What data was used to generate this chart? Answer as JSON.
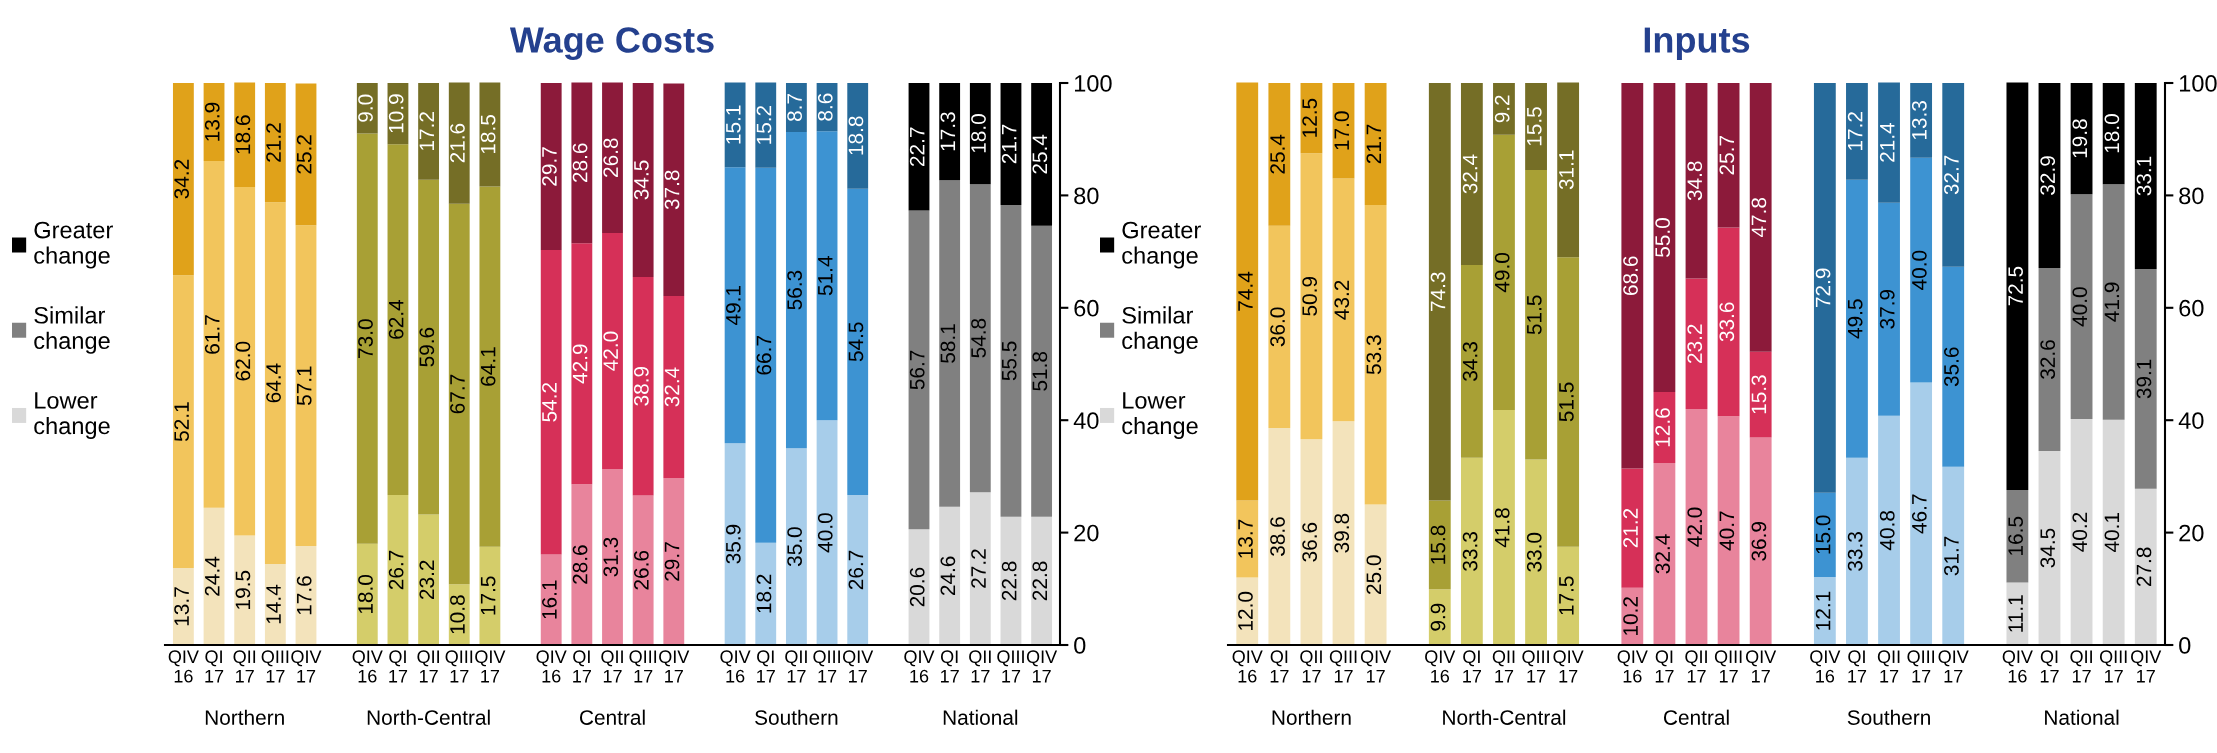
{
  "chart_data": [
    {
      "type": "bar",
      "title": "Wage Costs",
      "stacked": true,
      "legend": "left",
      "grid": false,
      "categories": [
        "QIV\n16",
        "QI\n17",
        "QII\n17",
        "QIII\n17",
        "QIV\n17",
        null,
        "QIV\n16",
        "QI\n17",
        "QII\n17",
        "QIII\n17",
        "QIV\n17",
        null,
        "QIV\n16",
        "QI\n17",
        "QII\n17",
        "QIII\n17",
        "QIV\n17",
        null,
        "QIV\n16",
        "QI\n17",
        "QII\n17",
        "QIII\n17",
        "QIV\n17",
        null,
        "QIV\n16",
        "QI\n17",
        "QII\n17",
        "QIII\n17",
        "QIV\n17"
      ],
      "annotations": [
        "Northern",
        "North-Central",
        "Central",
        "Southern",
        "National"
      ],
      "ylim": [
        0,
        100
      ],
      "yticks": [
        0,
        20,
        40,
        60,
        80,
        100
      ],
      "series": [
        {
          "name": "Lower change",
          "color": "#d9d9d9",
          "values": [
            13.7,
            24.4,
            19.5,
            14.4,
            17.6,
            null,
            18.0,
            26.7,
            23.2,
            10.8,
            17.5,
            null,
            16.1,
            28.6,
            31.3,
            26.6,
            29.7,
            null,
            35.9,
            18.2,
            35.0,
            40.0,
            26.7,
            null,
            20.6,
            24.6,
            27.2,
            22.8,
            22.8
          ],
          "value_labels": [
            "13.7",
            "24.4",
            "19.5",
            "14.4",
            "17.6",
            null,
            "18.0",
            "26.7",
            "23.2",
            "10.8",
            "17.5",
            null,
            "16.1",
            "28.6",
            "31.3",
            "26.6",
            "29.7",
            null,
            "35.9",
            "18.2",
            "35.0",
            "40.0",
            "26.7",
            null,
            "20.6",
            "24.6",
            "27.2",
            "22.8",
            "22.8"
          ],
          "colors": [
            "#f3e3bb",
            "#f3e3bb",
            "#f3e3bb",
            "#f3e3bb",
            "#f3e3bb",
            null,
            "#d4cd6a",
            "#d4cd6a",
            "#d4cd6a",
            "#d4cd6a",
            "#d4cd6a",
            null,
            "#e8849c",
            "#e8849c",
            "#e8849c",
            "#e8849c",
            "#e8849c",
            null,
            "#a7cdea",
            "#a7cdea",
            "#a7cdea",
            "#a7cdea",
            "#a7cdea",
            null,
            "#d9d9d9",
            "#d9d9d9",
            "#d9d9d9",
            "#d9d9d9",
            "#d9d9d9"
          ]
        },
        {
          "name": "Similar change",
          "color": "#808080",
          "values": [
            52.1,
            61.7,
            62.0,
            64.4,
            57.1,
            null,
            73.0,
            62.4,
            59.6,
            67.7,
            64.1,
            null,
            54.2,
            42.9,
            42.0,
            38.9,
            32.4,
            null,
            49.1,
            66.7,
            56.3,
            51.4,
            54.5,
            null,
            56.7,
            58.1,
            54.8,
            55.5,
            51.8
          ],
          "value_labels": [
            "52.1",
            "61.7",
            "62.0",
            "64.4",
            "57.1",
            null,
            "73.0",
            "62.4",
            "59.6",
            "67.7",
            "64.1",
            null,
            "54.2",
            "42.9",
            "42.0",
            "38.9",
            "32.4",
            null,
            "49.1",
            "66.7",
            "56.3",
            "51.4",
            "54.5",
            null,
            "56.7",
            "58.1",
            "54.8",
            "55.5",
            "51.8"
          ],
          "colors": [
            "#f2c55c",
            "#f2c55c",
            "#f2c55c",
            "#f2c55c",
            "#f2c55c",
            null,
            "#a8a035",
            "#a8a035",
            "#a8a035",
            "#a8a035",
            "#a8a035",
            null,
            "#d63058",
            "#d63058",
            "#d63058",
            "#d63058",
            "#d63058",
            null,
            "#3d93d2",
            "#3d93d2",
            "#3d93d2",
            "#3d93d2",
            "#3d93d2",
            null,
            "#808080",
            "#808080",
            "#808080",
            "#808080",
            "#808080"
          ]
        },
        {
          "name": "Greater change",
          "color": "#000000",
          "values": [
            34.2,
            13.9,
            18.6,
            21.2,
            25.2,
            null,
            9.0,
            10.9,
            17.2,
            21.6,
            18.5,
            null,
            29.7,
            28.6,
            26.8,
            34.5,
            37.8,
            null,
            15.1,
            15.2,
            8.7,
            8.6,
            18.8,
            null,
            22.7,
            17.3,
            18.0,
            21.7,
            25.4
          ],
          "value_labels": [
            "34.2",
            "13.9",
            "18.6",
            "21.2",
            "25.2",
            null,
            "9.0",
            "10.9",
            "17.2",
            "21.6",
            "18.5",
            null,
            "29.7",
            "28.6",
            "26.8",
            "34.5",
            "37.8",
            null,
            "15.1",
            "15.2",
            "8.7",
            "8.6",
            "18.8",
            null,
            "22.7",
            "17.3",
            "18.0",
            "21.7",
            "25.4"
          ],
          "colors": [
            "#e0a21a",
            "#e0a21a",
            "#e0a21a",
            "#e0a21a",
            "#e0a21a",
            null,
            "#756e26",
            "#756e26",
            "#756e26",
            "#756e26",
            "#756e26",
            null,
            "#8c1a3a",
            "#8c1a3a",
            "#8c1a3a",
            "#8c1a3a",
            "#8c1a3a",
            null,
            "#266a9a",
            "#266a9a",
            "#266a9a",
            "#266a9a",
            "#266a9a",
            null,
            "#000000",
            "#000000",
            "#000000",
            "#000000",
            "#000000"
          ]
        }
      ]
    },
    {
      "type": "bar",
      "title": "Inputs",
      "stacked": true,
      "legend": "left",
      "grid": false,
      "categories": [
        "QIV\n16",
        "QI\n17",
        "QII\n17",
        "QIII\n17",
        "QIV\n17",
        null,
        "QIV\n16",
        "QI\n17",
        "QII\n17",
        "QIII\n17",
        "QIV\n17",
        null,
        "QIV\n16",
        "QI\n17",
        "QII\n17",
        "QIII\n17",
        "QIV\n17",
        null,
        "QIV\n16",
        "QI\n17",
        "QII\n17",
        "QIII\n17",
        "QIV\n17",
        null,
        "QIV\n16",
        "QI\n17",
        "QII\n17",
        "QIII\n17",
        "QIV\n17"
      ],
      "annotations": [
        "Northern",
        "North-Central",
        "Central",
        "Southern",
        "National"
      ],
      "ylim": [
        0,
        100
      ],
      "yticks": [
        0,
        20,
        40,
        60,
        80,
        100
      ],
      "series": [
        {
          "name": "Lower change",
          "color": "#d9d9d9",
          "values": [
            12.0,
            38.6,
            36.6,
            39.8,
            25.0,
            null,
            9.9,
            33.3,
            41.8,
            33.0,
            17.5,
            null,
            10.2,
            32.4,
            42.0,
            40.7,
            36.9,
            null,
            12.1,
            33.3,
            40.8,
            46.7,
            31.7,
            null,
            11.1,
            34.5,
            40.2,
            40.1,
            27.8
          ],
          "value_labels": [
            "12.0",
            "38.6",
            "36.6",
            "39.8",
            "25.0",
            null,
            "9.9",
            "33.3",
            "41.8",
            "33.0",
            "17.5",
            null,
            "10.2",
            "32.4",
            "42.0",
            "40.7",
            "36.9",
            null,
            "12.1",
            "33.3",
            "40.8",
            "46.7",
            "31.7",
            null,
            "11.1",
            "34.5",
            "40.2",
            "40.1",
            "27.8"
          ],
          "colors": [
            "#f3e3bb",
            "#f3e3bb",
            "#f3e3bb",
            "#f3e3bb",
            "#f3e3bb",
            null,
            "#d4cd6a",
            "#d4cd6a",
            "#d4cd6a",
            "#d4cd6a",
            "#d4cd6a",
            null,
            "#e8849c",
            "#e8849c",
            "#e8849c",
            "#e8849c",
            "#e8849c",
            null,
            "#a7cdea",
            "#a7cdea",
            "#a7cdea",
            "#a7cdea",
            "#a7cdea",
            null,
            "#d9d9d9",
            "#d9d9d9",
            "#d9d9d9",
            "#d9d9d9",
            "#d9d9d9"
          ]
        },
        {
          "name": "Similar change",
          "color": "#808080",
          "values": [
            13.7,
            36.0,
            50.9,
            43.2,
            53.3,
            null,
            15.8,
            34.3,
            49.0,
            51.5,
            51.5,
            null,
            21.2,
            12.6,
            23.2,
            33.6,
            15.3,
            null,
            15.0,
            49.5,
            37.9,
            40.0,
            35.6,
            null,
            16.5,
            32.6,
            40.0,
            41.9,
            39.1
          ],
          "value_labels": [
            "13.7",
            "36.0",
            "50.9",
            "43.2",
            "53.3",
            null,
            "15.8",
            "34.3",
            "49.0",
            "51.5",
            "51.5",
            null,
            "21.2",
            "12.6",
            "23.2",
            "33.6",
            "15.3",
            null,
            "15.0",
            "49.5",
            "37.9",
            "40.0",
            "35.6",
            null,
            "16.5",
            "32.6",
            "40.0",
            "41.9",
            "39.1"
          ],
          "colors": [
            "#f2c55c",
            "#f2c55c",
            "#f2c55c",
            "#f2c55c",
            "#f2c55c",
            null,
            "#a8a035",
            "#a8a035",
            "#a8a035",
            "#a8a035",
            "#a8a035",
            null,
            "#d63058",
            "#d63058",
            "#d63058",
            "#d63058",
            "#d63058",
            null,
            "#3d93d2",
            "#3d93d2",
            "#3d93d2",
            "#3d93d2",
            "#3d93d2",
            null,
            "#808080",
            "#808080",
            "#808080",
            "#808080",
            "#808080"
          ]
        },
        {
          "name": "Greater change",
          "color": "#000000",
          "values": [
            74.4,
            25.4,
            12.5,
            17.0,
            21.7,
            null,
            74.3,
            32.4,
            9.2,
            15.5,
            31.1,
            null,
            68.6,
            55.0,
            34.8,
            25.7,
            47.8,
            null,
            72.9,
            17.2,
            21.4,
            13.3,
            32.7,
            null,
            72.5,
            32.9,
            19.8,
            18.0,
            33.1
          ],
          "value_labels": [
            "74.4",
            "25.4",
            "12.5",
            "17.0",
            "21.7",
            null,
            "74.3",
            "32.4",
            "9.2",
            "15.5",
            "31.1",
            null,
            "68.6",
            "55.0",
            "34.8",
            "25.7",
            "47.8",
            null,
            "72.9",
            "17.2",
            "21.4",
            "13.3",
            "32.7",
            null,
            "72.5",
            "32.9",
            "19.8",
            "18.0",
            "33.1"
          ],
          "colors": [
            "#e0a21a",
            "#e0a21a",
            "#e0a21a",
            "#e0a21a",
            "#e0a21a",
            null,
            "#756e26",
            "#756e26",
            "#756e26",
            "#756e26",
            "#756e26",
            null,
            "#8c1a3a",
            "#8c1a3a",
            "#8c1a3a",
            "#8c1a3a",
            "#8c1a3a",
            null,
            "#266a9a",
            "#266a9a",
            "#266a9a",
            "#266a9a",
            "#266a9a",
            null,
            "#000000",
            "#000000",
            "#000000",
            "#000000",
            "#000000"
          ]
        }
      ]
    }
  ]
}
